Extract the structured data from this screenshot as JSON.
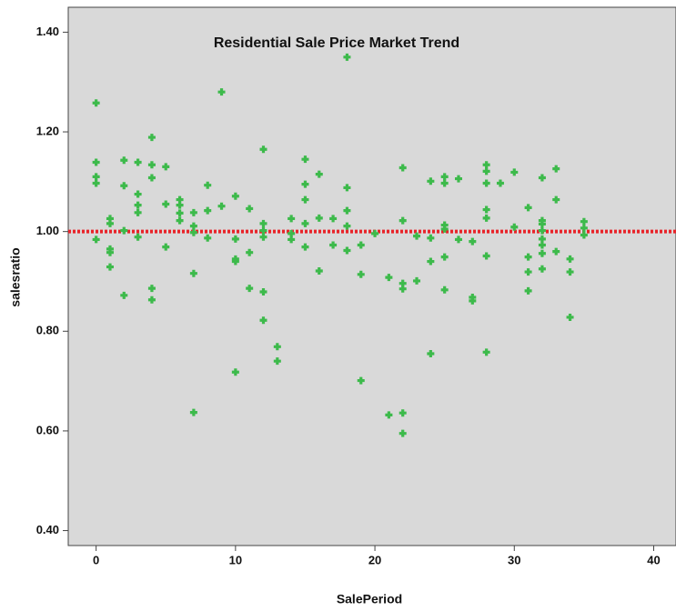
{
  "chart_data": {
    "type": "scatter",
    "title": "Residential Sale Price Market Trend",
    "x_label": "SalePeriod",
    "y_label": "salesratio",
    "color": "#3dba4b",
    "reference_line": {
      "value": 1,
      "color": "#e8242a"
    },
    "xlim": [
      -2,
      41.6
    ],
    "ylim": [
      0.37,
      1.45
    ],
    "xticks": [
      0,
      10,
      20,
      30,
      40
    ],
    "yticks": [
      {
        "value": 0.4,
        "label": "0.40"
      },
      {
        "value": 0.6,
        "label": "0.60"
      },
      {
        "value": 0.8,
        "label": "0.80"
      },
      {
        "value": 1,
        "label": "1.00"
      },
      {
        "value": 1.2,
        "label": "1.20"
      },
      {
        "value": 1.4,
        "label": "1.40"
      }
    ],
    "x": [
      0,
      0,
      0,
      0,
      0,
      1,
      1,
      1,
      1,
      1,
      2,
      2,
      2,
      2,
      3,
      3,
      3,
      3,
      3,
      4,
      4,
      4,
      4,
      4,
      5,
      5,
      5,
      6,
      6,
      6,
      6,
      7,
      7,
      7,
      7,
      7,
      8,
      8,
      8,
      9,
      9,
      10,
      10,
      10,
      10,
      10,
      11,
      11,
      11,
      12,
      12,
      12,
      12,
      12,
      12,
      13,
      13,
      14,
      14,
      14,
      15,
      15,
      15,
      15,
      15,
      16,
      16,
      16,
      17,
      17,
      18,
      18,
      18,
      18,
      18,
      19,
      19,
      19,
      20,
      21,
      21,
      22,
      22,
      22,
      22,
      22,
      22,
      23,
      23,
      24,
      24,
      24,
      24,
      25,
      25,
      25,
      25,
      25,
      25,
      26,
      26,
      27,
      27,
      27,
      28,
      28,
      28,
      28,
      28,
      28,
      28,
      29,
      30,
      30,
      31,
      31,
      31,
      31,
      32,
      32,
      32,
      32,
      32,
      32,
      32,
      32,
      33,
      33,
      33,
      34,
      34,
      34,
      35,
      35,
      35
    ],
    "values": [
      1.258,
      1.139,
      1.11,
      1.097,
      0.984,
      1.026,
      1.016,
      0.965,
      0.958,
      0.929,
      1.143,
      1.092,
      1.002,
      0.872,
      1.139,
      1.075,
      1.053,
      1.038,
      0.989,
      1.189,
      1.134,
      1.108,
      0.886,
      0.863,
      1.13,
      1.055,
      0.969,
      1.064,
      1.053,
      1.037,
      1.022,
      1.038,
      1.011,
      0.998,
      0.916,
      0.637,
      1.093,
      1.042,
      0.987,
      1.28,
      1.051,
      1.071,
      0.985,
      0.945,
      0.94,
      0.718,
      1.046,
      0.958,
      0.886,
      1.165,
      1.016,
      1.002,
      0.989,
      0.879,
      0.822,
      0.769,
      0.74,
      1.026,
      0.996,
      0.984,
      1.145,
      1.095,
      1.064,
      1.016,
      0.969,
      1.115,
      1.027,
      0.921,
      1.026,
      0.973,
      1.35,
      1.088,
      1.042,
      1.011,
      0.962,
      0.973,
      0.914,
      0.701,
      0.996,
      0.908,
      0.632,
      1.128,
      1.022,
      0.896,
      0.885,
      0.636,
      0.595,
      0.991,
      0.901,
      1.101,
      0.987,
      0.94,
      0.755,
      1.11,
      1.097,
      1.013,
      1.005,
      0.949,
      0.883,
      1.106,
      0.984,
      0.98,
      0.868,
      0.861,
      1.134,
      1.121,
      1.097,
      1.044,
      1.027,
      0.951,
      0.758,
      1.097,
      1.119,
      1.009,
      1.048,
      0.949,
      0.919,
      0.881,
      1.108,
      1.022,
      1.015,
      1.002,
      0.985,
      0.973,
      0.956,
      0.925,
      1.126,
      1.064,
      0.96,
      0.945,
      0.919,
      0.828,
      1.02,
      1.007,
      0.993
    ]
  }
}
